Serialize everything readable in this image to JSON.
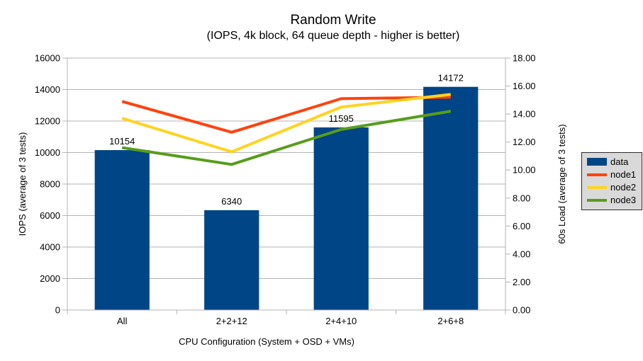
{
  "chart_data": {
    "type": "combo-bar-line",
    "title": "Random Write",
    "subtitle": "(IOPS, 4k block, 64 queue depth - higher is better)",
    "categories": [
      "All",
      "2+2+12",
      "2+4+10",
      "2+6+8"
    ],
    "bar_series": {
      "name": "data",
      "axis": "left",
      "color": "#004586",
      "values": [
        10154,
        6340,
        11595,
        14172
      ],
      "data_labels": [
        "10154",
        "6340",
        "11595",
        "14172"
      ]
    },
    "line_series": [
      {
        "name": "node1",
        "axis": "right",
        "color": "#FF420E",
        "values": [
          14.9,
          12.7,
          15.1,
          15.2
        ]
      },
      {
        "name": "node2",
        "axis": "right",
        "color": "#FFD320",
        "values": [
          13.7,
          11.3,
          14.5,
          15.4
        ]
      },
      {
        "name": "node3",
        "axis": "right",
        "color": "#579D1C",
        "values": [
          11.6,
          10.4,
          12.9,
          14.2
        ]
      }
    ],
    "left_axis": {
      "title": "IOPS (average of 3 tests)",
      "min": 0,
      "max": 16000,
      "tick_step": 2000,
      "tick_labels": [
        "0",
        "2000",
        "4000",
        "6000",
        "8000",
        "10000",
        "12000",
        "14000",
        "16000"
      ]
    },
    "right_axis": {
      "title": "60s Load (average of 3 tests)",
      "min": 0,
      "max": 18,
      "tick_step": 2,
      "tick_labels": [
        "0.00",
        "2.00",
        "4.00",
        "6.00",
        "8.00",
        "10.00",
        "12.00",
        "14.00",
        "16.00",
        "18.00"
      ]
    },
    "x_axis": {
      "title": "CPU Configuration (System + OSD + VMs)"
    },
    "legend": {
      "position": "right",
      "items": [
        {
          "label": "data",
          "swatch": "box",
          "color": "#004586"
        },
        {
          "label": "node1",
          "swatch": "line",
          "color": "#FF420E"
        },
        {
          "label": "node2",
          "swatch": "line",
          "color": "#FFD320"
        },
        {
          "label": "node3",
          "swatch": "line",
          "color": "#579D1C"
        }
      ]
    },
    "grid": "horizontal",
    "colors": {
      "grid": "#b3b3b3",
      "axis": "#b3b3b3",
      "text": "#000000",
      "background": "#ffffff",
      "legend_bg": "#d9d9d9",
      "legend_border": "#2b2b2b"
    }
  }
}
